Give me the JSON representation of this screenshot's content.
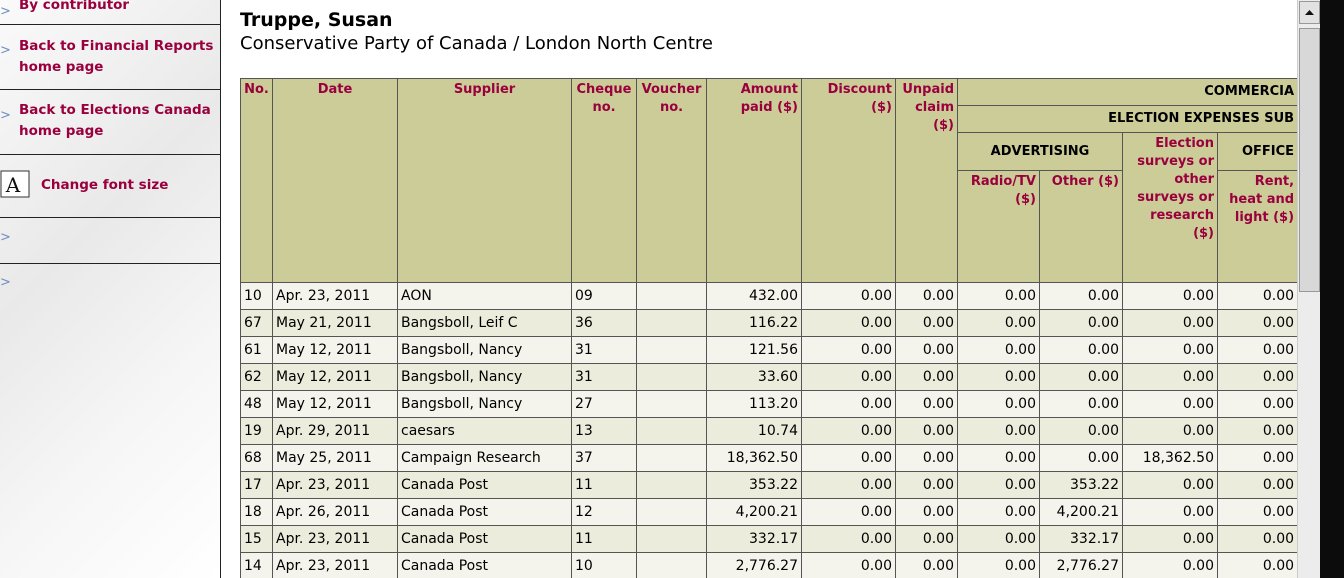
{
  "sidebar": {
    "links": [
      "By contributor",
      "Back to Financial Reports home page",
      "Back to Elections Canada home page",
      "Change font size"
    ]
  },
  "header": {
    "name": "Truppe, Susan",
    "affiliation": "Conservative Party of Canada / London North Centre"
  },
  "table": {
    "columns": [
      "No.",
      "Date",
      "Supplier",
      "Cheque no.",
      "Voucher no.",
      "Amount paid ($)",
      "Discount ($)",
      "Unpaid claim ($)"
    ],
    "groups": {
      "commercial": "COMMERCIA",
      "election_expenses": "ELECTION EXPENSES SUB",
      "advertising": "ADVERTISING",
      "office": "OFFICE"
    },
    "subcolumns": {
      "radio_tv": "Radio/TV ($)",
      "other": "Other ($)",
      "surveys": "Election surveys or other surveys or research ($)",
      "rent": "Rent, heat and light ($)"
    },
    "rows": [
      [
        "10",
        "Apr. 23, 2011",
        "AON",
        "09",
        "432.00",
        "0.00",
        "0.00",
        "0.00",
        "0.00",
        "0.00",
        "0.00"
      ],
      [
        "67",
        "May 21, 2011",
        "Bangsboll, Leif C",
        "36",
        "116.22",
        "0.00",
        "0.00",
        "0.00",
        "0.00",
        "0.00",
        "0.00"
      ],
      [
        "61",
        "May 12, 2011",
        "Bangsboll, Nancy",
        "31",
        "121.56",
        "0.00",
        "0.00",
        "0.00",
        "0.00",
        "0.00",
        "0.00"
      ],
      [
        "62",
        "May 12, 2011",
        "Bangsboll, Nancy",
        "31",
        "33.60",
        "0.00",
        "0.00",
        "0.00",
        "0.00",
        "0.00",
        "0.00"
      ],
      [
        "48",
        "May 12, 2011",
        "Bangsboll, Nancy",
        "27",
        "113.20",
        "0.00",
        "0.00",
        "0.00",
        "0.00",
        "0.00",
        "0.00"
      ],
      [
        "19",
        "Apr. 29, 2011",
        "caesars",
        "13",
        "10.74",
        "0.00",
        "0.00",
        "0.00",
        "0.00",
        "0.00",
        "0.00"
      ],
      [
        "68",
        "May 25, 2011",
        "Campaign Research",
        "37",
        "18,362.50",
        "0.00",
        "0.00",
        "0.00",
        "0.00",
        "18,362.50",
        "0.00"
      ],
      [
        "17",
        "Apr. 23, 2011",
        "Canada Post",
        "11",
        "353.22",
        "0.00",
        "0.00",
        "0.00",
        "353.22",
        "0.00",
        "0.00"
      ],
      [
        "18",
        "Apr. 26, 2011",
        "Canada Post",
        "12",
        "4,200.21",
        "0.00",
        "0.00",
        "0.00",
        "4,200.21",
        "0.00",
        "0.00"
      ],
      [
        "15",
        "Apr. 23, 2011",
        "Canada Post",
        "11",
        "332.17",
        "0.00",
        "0.00",
        "0.00",
        "332.17",
        "0.00",
        "0.00"
      ],
      [
        "14",
        "Apr. 23, 2011",
        "Canada Post",
        "10",
        "2,776.27",
        "0.00",
        "0.00",
        "0.00",
        "2,776.27",
        "0.00",
        "0.00"
      ]
    ]
  }
}
